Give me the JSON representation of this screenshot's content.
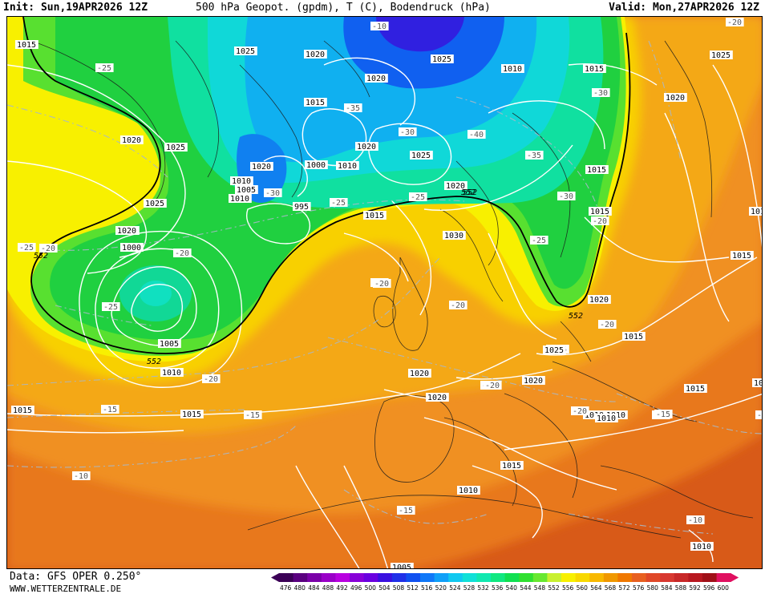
{
  "header": {
    "init_label": "Init:",
    "init_value": "Sun,19APR2026 12Z",
    "parameter": "500 hPa Geopot. (gpdm), T (C), Bodendruck (hPa)",
    "valid_label": "Valid:",
    "valid_value": "Mon,27APR2026 12Z"
  },
  "footer": {
    "data_source": "Data: GFS OPER 0.250°",
    "website": "WWW.WETTERZENTRALE.DE"
  },
  "legend": {
    "unit": "gpdm",
    "values": [
      "476",
      "480",
      "484",
      "488",
      "492",
      "496",
      "500",
      "504",
      "508",
      "512",
      "516",
      "520",
      "524",
      "528",
      "532",
      "536",
      "540",
      "544",
      "548",
      "552",
      "556",
      "560",
      "564",
      "568",
      "572",
      "576",
      "580",
      "584",
      "588",
      "592",
      "596",
      "600"
    ],
    "colors": [
      "#3b0056",
      "#5a0080",
      "#7a00a8",
      "#9a00c8",
      "#b800e0",
      "#8800d8",
      "#6a00e0",
      "#3a10e0",
      "#2030e8",
      "#1050f0",
      "#1078f8",
      "#10a0f8",
      "#10c8f0",
      "#10e0d8",
      "#10e8b0",
      "#10e880",
      "#10e050",
      "#30e030",
      "#68e830",
      "#c8f030",
      "#f8f000",
      "#f8d800",
      "#f8b800",
      "#f09800",
      "#f07800",
      "#e86020",
      "#e04828",
      "#d83830",
      "#c82828",
      "#b81820",
      "#a01018",
      "#e01060"
    ]
  },
  "pressure_labels": [
    "1015",
    "1025",
    "1020",
    "1020",
    "1025",
    "1010",
    "1015",
    "1015",
    "1020",
    "1010",
    "1015",
    "1025",
    "1025",
    "1020",
    "1000",
    "1010",
    "1020",
    "1020",
    "1010",
    "1005",
    "995",
    "1015",
    "1030",
    "1020",
    "1025",
    "1015",
    "1020",
    "1015",
    "1015",
    "1025",
    "1020",
    "1020",
    "1010",
    "1015",
    "1000",
    "1005",
    "1010",
    "1025",
    "1020",
    "1025",
    "1015",
    "1020",
    "1015",
    "1010",
    "1015",
    "1010",
    "1005",
    "1015",
    "1010",
    "1010",
    "1015",
    "1020"
  ],
  "temperature_labels": [
    "-10",
    "-25",
    "-35",
    "-30",
    "-40",
    "-35",
    "-30",
    "-30",
    "-25",
    "-25",
    "-25",
    "-20",
    "-20",
    "-20",
    "-25",
    "-30",
    "-20",
    "-20",
    "-20",
    "-20",
    "-25",
    "-20",
    "-20",
    "-15",
    "-15",
    "-15",
    "-20",
    "-15",
    "-10",
    "-15",
    "-10",
    "-20",
    "-15",
    "-20"
  ],
  "height_labels": [
    "552",
    "552",
    "552",
    "552",
    "552"
  ]
}
